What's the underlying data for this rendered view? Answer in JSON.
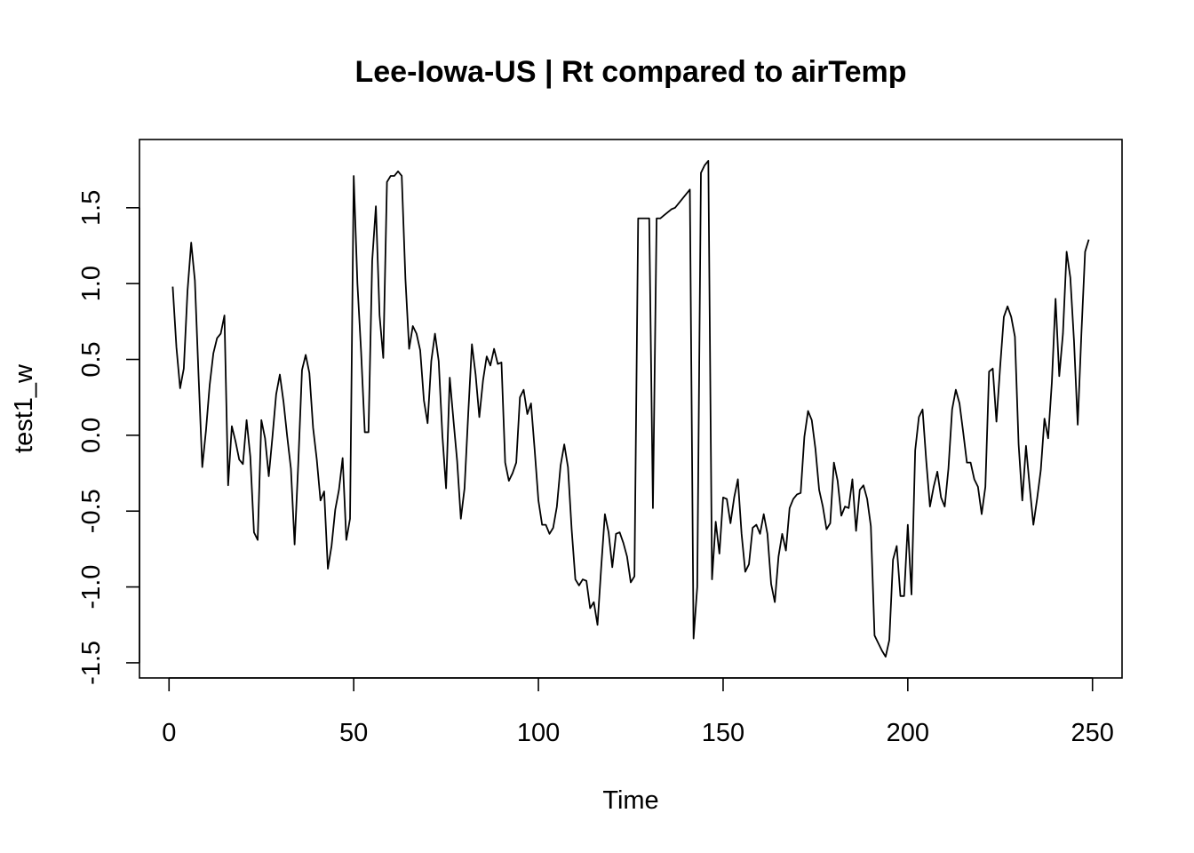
{
  "chart_data": {
    "type": "line",
    "title": "Lee-Iowa-US | Rt compared to airTemp",
    "xlabel": "Time",
    "ylabel": "test1_w",
    "xlim": [
      -8,
      258
    ],
    "ylim": [
      -1.6,
      1.95
    ],
    "x_ticks": [
      0,
      50,
      100,
      150,
      200,
      250
    ],
    "x_tick_labels": [
      "0",
      "50",
      "100",
      "150",
      "200",
      "250"
    ],
    "y_ticks": [
      -1.5,
      -1.0,
      -0.5,
      0.0,
      0.5,
      1.0,
      1.5
    ],
    "y_tick_labels": [
      "-1.5",
      "-1.0",
      "-0.5",
      "0.0",
      "0.5",
      "1.0",
      "1.5"
    ],
    "grid": false,
    "legend": "none",
    "line_color": "#000000",
    "series": [
      {
        "x_start": 1,
        "x_step": 1,
        "values": [
          0.98,
          0.58,
          0.31,
          0.44,
          0.95,
          1.27,
          1.02,
          0.39,
          -0.21,
          0.03,
          0.33,
          0.54,
          0.64,
          0.67,
          0.79,
          -0.33,
          0.06,
          -0.04,
          -0.16,
          -0.19,
          0.1,
          -0.14,
          -0.64,
          -0.69,
          0.1,
          -0.02,
          -0.27,
          -0.01,
          0.27,
          0.4,
          0.22,
          -0.01,
          -0.22,
          -0.72,
          -0.18,
          0.43,
          0.53,
          0.41,
          0.05,
          -0.16,
          -0.43,
          -0.37,
          -0.88,
          -0.73,
          -0.49,
          -0.36,
          -0.15,
          -0.69,
          -0.55,
          1.71,
          1.0,
          0.55,
          0.02,
          0.02,
          1.15,
          1.51,
          0.79,
          0.51,
          1.67,
          1.71,
          1.71,
          1.74,
          1.71,
          1.03,
          0.57,
          0.72,
          0.67,
          0.56,
          0.23,
          0.08,
          0.49,
          0.67,
          0.49,
          0.0,
          -0.35,
          0.38,
          0.1,
          -0.17,
          -0.55,
          -0.35,
          0.14,
          0.6,
          0.4,
          0.12,
          0.36,
          0.52,
          0.46,
          0.57,
          0.47,
          0.48,
          -0.18,
          -0.3,
          -0.25,
          -0.18,
          0.25,
          0.3,
          0.14,
          0.21,
          -0.1,
          -0.43,
          -0.59,
          -0.59,
          -0.65,
          -0.61,
          -0.47,
          -0.2,
          -0.06,
          -0.21,
          -0.62,
          -0.95,
          -0.99,
          -0.95,
          -0.96,
          -1.14,
          -1.1,
          -1.25,
          -0.87,
          -0.52,
          -0.64,
          -0.87,
          -0.65,
          -0.64,
          -0.71,
          -0.8,
          -0.97,
          -0.93,
          1.43,
          1.43,
          1.43,
          1.43,
          -0.48,
          1.43,
          1.43,
          1.45,
          1.47,
          1.49,
          1.5,
          1.53,
          1.56,
          1.59,
          1.62,
          -1.34,
          -1.0,
          1.73,
          1.78,
          1.81,
          -0.95,
          -0.57,
          -0.78,
          -0.41,
          -0.42,
          -0.58,
          -0.41,
          -0.29,
          -0.65,
          -0.9,
          -0.85,
          -0.61,
          -0.59,
          -0.65,
          -0.52,
          -0.65,
          -0.98,
          -1.1,
          -0.8,
          -0.65,
          -0.76,
          -0.48,
          -0.42,
          -0.39,
          -0.38,
          -0.01,
          0.16,
          0.1,
          -0.09,
          -0.36,
          -0.47,
          -0.62,
          -0.58,
          -0.18,
          -0.3,
          -0.53,
          -0.47,
          -0.48,
          -0.29,
          -0.63,
          -0.36,
          -0.33,
          -0.42,
          -0.6,
          -1.32,
          -1.37,
          -1.42,
          -1.46,
          -1.35,
          -0.82,
          -0.73,
          -1.06,
          -1.06,
          -0.59,
          -1.05,
          -0.1,
          0.12,
          0.17,
          -0.17,
          -0.47,
          -0.34,
          -0.24,
          -0.41,
          -0.47,
          -0.22,
          0.17,
          0.3,
          0.21,
          0.02,
          -0.18,
          -0.18,
          -0.29,
          -0.34,
          -0.52,
          -0.34,
          0.42,
          0.44,
          0.09,
          0.45,
          0.78,
          0.85,
          0.78,
          0.65,
          -0.06,
          -0.43,
          -0.07,
          -0.34,
          -0.59,
          -0.42,
          -0.23,
          0.11,
          -0.02,
          0.35,
          0.9,
          0.39,
          0.67,
          1.21,
          1.04,
          0.62,
          0.07,
          0.67,
          1.21,
          1.29
        ]
      }
    ]
  }
}
